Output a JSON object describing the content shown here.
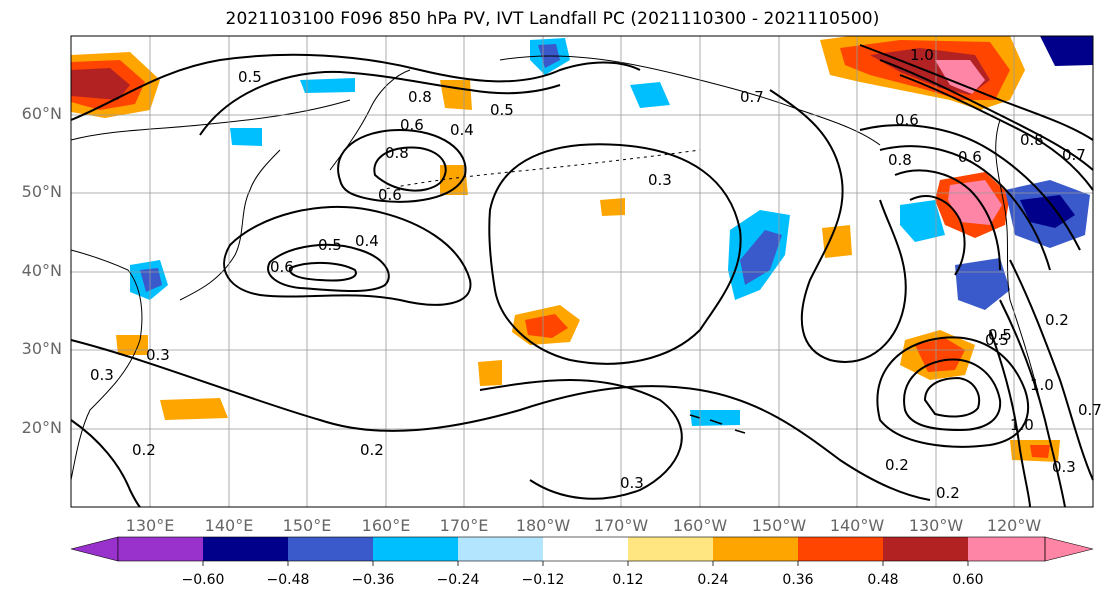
{
  "title": "2021103100 F096 850 hPa PV, IVT Landfall PC (2021110300 - 2021110500)",
  "map": {
    "lat_labels": [
      "60°N",
      "50°N",
      "40°N",
      "30°N",
      "20°N"
    ],
    "lon_labels": [
      "130°E",
      "140°E",
      "150°E",
      "160°E",
      "170°E",
      "180°W",
      "170°W",
      "160°W",
      "150°W",
      "140°W",
      "130°W",
      "120°W"
    ],
    "contour_labels": [
      "0.5",
      "0.5",
      "0.4",
      "0.8",
      "0.6",
      "0.8",
      "0.6",
      "0.5",
      "0.4",
      "0.6",
      "0.3",
      "0.3",
      "0.2",
      "0.3",
      "0.2",
      "0.2",
      "0.3",
      "0.5",
      "0.7",
      "0.8",
      "1.0",
      "1.0",
      "0.8",
      "0.6",
      "0.2",
      "0.6",
      "0.5",
      "0.2",
      "1.0",
      "0.7",
      "0.3",
      "0.7"
    ],
    "shading": {
      "neg_strong": "#00008b",
      "neg_mid": "#3a5acb",
      "neg_light": "#00bfff",
      "neg_faint": "#b3e5ff",
      "pos_faint": "#ffe680",
      "pos_light": "#ffa500",
      "pos_mid": "#ff4500",
      "pos_strong": "#b22222",
      "pos_max": "#ff85a6"
    }
  },
  "colorbar": {
    "ticks": [
      "−0.60",
      "−0.48",
      "−0.36",
      "−0.24",
      "−0.12",
      "0.12",
      "0.24",
      "0.36",
      "0.48",
      "0.60"
    ],
    "colors": [
      "#9932cc",
      "#00008b",
      "#3a5acb",
      "#00bfff",
      "#b3e5ff",
      "#ffffff",
      "#ffe680",
      "#ffa500",
      "#ff4500",
      "#b22222",
      "#ff85a6"
    ]
  }
}
